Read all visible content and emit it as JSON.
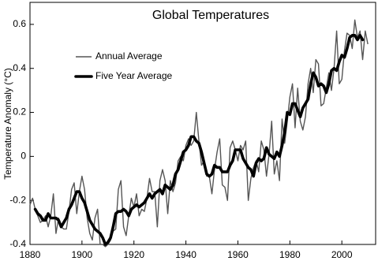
{
  "chart_data": {
    "type": "line",
    "title": "Global Temperatures",
    "ylabel": "Temperature Anomaly (°C)",
    "xlim": [
      1880,
      2013
    ],
    "xticks": [
      1880,
      1900,
      1920,
      1940,
      1960,
      1980,
      2000
    ],
    "ylim": [
      -0.4,
      0.7
    ],
    "yticks": [
      -0.4,
      -0.2,
      0,
      0.2,
      0.4,
      0.6
    ],
    "grid": false,
    "legend": "upper left",
    "series": [
      {
        "name": "Annual Average",
        "color": "#555555",
        "x": [
          1880,
          1881,
          1882,
          1883,
          1884,
          1885,
          1886,
          1887,
          1888,
          1889,
          1890,
          1891,
          1892,
          1893,
          1894,
          1895,
          1896,
          1897,
          1898,
          1899,
          1900,
          1901,
          1902,
          1903,
          1904,
          1905,
          1906,
          1907,
          1908,
          1909,
          1910,
          1911,
          1912,
          1913,
          1914,
          1915,
          1916,
          1917,
          1918,
          1919,
          1920,
          1921,
          1922,
          1923,
          1924,
          1925,
          1926,
          1927,
          1928,
          1929,
          1930,
          1931,
          1932,
          1933,
          1934,
          1935,
          1936,
          1937,
          1938,
          1939,
          1940,
          1941,
          1942,
          1943,
          1944,
          1945,
          1946,
          1947,
          1948,
          1949,
          1950,
          1951,
          1952,
          1953,
          1954,
          1955,
          1956,
          1957,
          1958,
          1959,
          1960,
          1961,
          1962,
          1963,
          1964,
          1965,
          1966,
          1967,
          1968,
          1969,
          1970,
          1971,
          1972,
          1973,
          1974,
          1975,
          1976,
          1977,
          1978,
          1979,
          1980,
          1981,
          1982,
          1983,
          1984,
          1985,
          1986,
          1987,
          1988,
          1989,
          1990,
          1991,
          1992,
          1993,
          1994,
          1995,
          1996,
          1997,
          1998,
          1999,
          2000,
          2001,
          2002,
          2003,
          2004,
          2005,
          2006,
          2007,
          2008,
          2009,
          2010
        ],
        "values": [
          -0.22,
          -0.19,
          -0.24,
          -0.27,
          -0.3,
          -0.29,
          -0.27,
          -0.32,
          -0.27,
          -0.17,
          -0.35,
          -0.28,
          -0.32,
          -0.33,
          -0.33,
          -0.25,
          -0.15,
          -0.12,
          -0.26,
          -0.16,
          -0.09,
          -0.15,
          -0.28,
          -0.35,
          -0.38,
          -0.28,
          -0.24,
          -0.4,
          -0.4,
          -0.41,
          -0.4,
          -0.38,
          -0.34,
          -0.33,
          -0.15,
          -0.11,
          -0.32,
          -0.36,
          -0.27,
          -0.19,
          -0.23,
          -0.17,
          -0.27,
          -0.24,
          -0.25,
          -0.19,
          -0.1,
          -0.16,
          -0.16,
          -0.32,
          -0.11,
          -0.06,
          -0.11,
          -0.26,
          -0.11,
          -0.16,
          -0.12,
          -0.02,
          0,
          -0.02,
          0.05,
          0.08,
          0.05,
          0.07,
          0.2,
          0.07,
          -0.04,
          -0.02,
          -0.09,
          -0.09,
          -0.17,
          -0.06,
          0.02,
          0.08,
          -0.13,
          -0.14,
          -0.2,
          0.04,
          0.07,
          0.03,
          -0.02,
          0.05,
          0.03,
          0.07,
          -0.2,
          -0.1,
          -0.05,
          -0.02,
          -0.07,
          0.07,
          0.03,
          -0.09,
          0.01,
          0.16,
          -0.08,
          -0.02,
          -0.11,
          0.17,
          0.06,
          0.16,
          0.27,
          0.33,
          0.13,
          0.31,
          0.16,
          0.12,
          0.18,
          0.33,
          0.4,
          0.29,
          0.44,
          0.42,
          0.23,
          0.24,
          0.31,
          0.38,
          0.3,
          0.4,
          0.57,
          0.33,
          0.35,
          0.48,
          0.56,
          0.55,
          0.49,
          0.62,
          0.54,
          0.57,
          0.44,
          0.57,
          0.51
        ]
      },
      {
        "name": "Five Year Average",
        "color": "#000000",
        "x": [
          1882,
          1883,
          1884,
          1885,
          1886,
          1887,
          1888,
          1889,
          1890,
          1891,
          1892,
          1893,
          1894,
          1895,
          1896,
          1897,
          1898,
          1899,
          1900,
          1901,
          1902,
          1903,
          1904,
          1905,
          1906,
          1907,
          1908,
          1909,
          1910,
          1911,
          1912,
          1913,
          1914,
          1915,
          1916,
          1917,
          1918,
          1919,
          1920,
          1921,
          1922,
          1923,
          1924,
          1925,
          1926,
          1927,
          1928,
          1929,
          1930,
          1931,
          1932,
          1933,
          1934,
          1935,
          1936,
          1937,
          1938,
          1939,
          1940,
          1941,
          1942,
          1943,
          1944,
          1945,
          1946,
          1947,
          1948,
          1949,
          1950,
          1951,
          1952,
          1953,
          1954,
          1955,
          1956,
          1957,
          1958,
          1959,
          1960,
          1961,
          1962,
          1963,
          1964,
          1965,
          1966,
          1967,
          1968,
          1969,
          1970,
          1971,
          1972,
          1973,
          1974,
          1975,
          1976,
          1977,
          1978,
          1979,
          1980,
          1981,
          1982,
          1983,
          1984,
          1985,
          1986,
          1987,
          1988,
          1989,
          1990,
          1991,
          1992,
          1993,
          1994,
          1995,
          1996,
          1997,
          1998,
          1999,
          2000,
          2001,
          2002,
          2003,
          2004,
          2005,
          2006,
          2007,
          2008
        ],
        "values": [
          -0.24,
          -0.26,
          -0.27,
          -0.29,
          -0.29,
          -0.26,
          -0.28,
          -0.28,
          -0.28,
          -0.29,
          -0.32,
          -0.3,
          -0.28,
          -0.24,
          -0.22,
          -0.19,
          -0.16,
          -0.16,
          -0.19,
          -0.21,
          -0.25,
          -0.29,
          -0.31,
          -0.33,
          -0.34,
          -0.35,
          -0.37,
          -0.4,
          -0.39,
          -0.37,
          -0.32,
          -0.26,
          -0.25,
          -0.25,
          -0.24,
          -0.25,
          -0.27,
          -0.24,
          -0.23,
          -0.22,
          -0.23,
          -0.22,
          -0.21,
          -0.19,
          -0.17,
          -0.19,
          -0.17,
          -0.16,
          -0.15,
          -0.17,
          -0.13,
          -0.14,
          -0.15,
          -0.13,
          -0.08,
          -0.06,
          -0.02,
          0.02,
          0.03,
          0.05,
          0.09,
          0.09,
          0.07,
          0.06,
          0.02,
          -0.03,
          -0.08,
          -0.09,
          -0.08,
          -0.04,
          -0.05,
          -0.05,
          -0.07,
          -0.07,
          -0.07,
          -0.04,
          -0.02,
          0.03,
          0.03,
          0.03,
          -0.01,
          -0.03,
          -0.05,
          -0.06,
          -0.09,
          -0.03,
          -0.01,
          -0.02,
          -0.01,
          0.04,
          0.01,
          0,
          -0.01,
          0.02,
          0,
          0.05,
          0.11,
          0.2,
          0.19,
          0.24,
          0.24,
          0.21,
          0.18,
          0.22,
          0.24,
          0.26,
          0.33,
          0.38,
          0.36,
          0.32,
          0.33,
          0.32,
          0.29,
          0.33,
          0.39,
          0.4,
          0.39,
          0.43,
          0.46,
          0.45,
          0.49,
          0.54,
          0.55,
          0.55,
          0.53,
          0.55,
          0.53
        ]
      }
    ]
  }
}
